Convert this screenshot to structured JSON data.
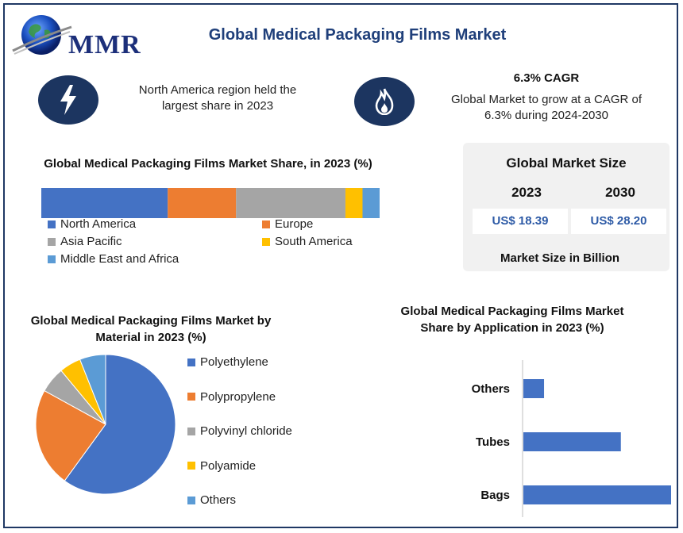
{
  "header": {
    "title": "Global Medical Packaging Films Market",
    "logo_text": "MMR"
  },
  "highlights": {
    "region_text": "North America region held the largest share in 2023",
    "cagr_title": "6.3% CAGR",
    "cagr_text": "Global Market to grow at a CAGR of 6.3% during 2024-2030"
  },
  "market_size": {
    "title": "Global Market Size",
    "year1": "2023",
    "year2": "2030",
    "value1": "US$ 18.39",
    "value2": "US$ 28.20",
    "footer": "Market Size in Billion"
  },
  "colors": {
    "blue": "#4472c4",
    "orange": "#ed7d31",
    "gray": "#a5a5a5",
    "yellow": "#ffc000",
    "light_blue": "#5b9bd5",
    "dark_navy": "#1c3560"
  },
  "chart_data": [
    {
      "type": "bar",
      "orientation": "horizontal-stacked-100",
      "title": "Global Medical Packaging Films Market Share, in 2023 (%)",
      "series": [
        {
          "name": "North America",
          "values": [
            37
          ]
        },
        {
          "name": "Europe",
          "values": [
            20
          ]
        },
        {
          "name": "Asia Pacific",
          "values": [
            32
          ]
        },
        {
          "name": "South America",
          "values": [
            5
          ]
        },
        {
          "name": "Middle East and Africa",
          "values": [
            5
          ]
        }
      ]
    },
    {
      "type": "pie",
      "title": "Global Medical Packaging Films Market by Material in 2023 (%)",
      "categories": [
        "Polyethylene",
        "Polypropylene",
        "Polyvinyl chloride",
        "Polyamide",
        "Others"
      ],
      "values": [
        60,
        23,
        6,
        5,
        6
      ]
    },
    {
      "type": "bar",
      "orientation": "horizontal",
      "title": "Global Medical Packaging Films Market Share by Application in 2023 (%)",
      "categories": [
        "Others",
        "Tubes",
        "Bags"
      ],
      "values": [
        14,
        66,
        100
      ]
    }
  ]
}
